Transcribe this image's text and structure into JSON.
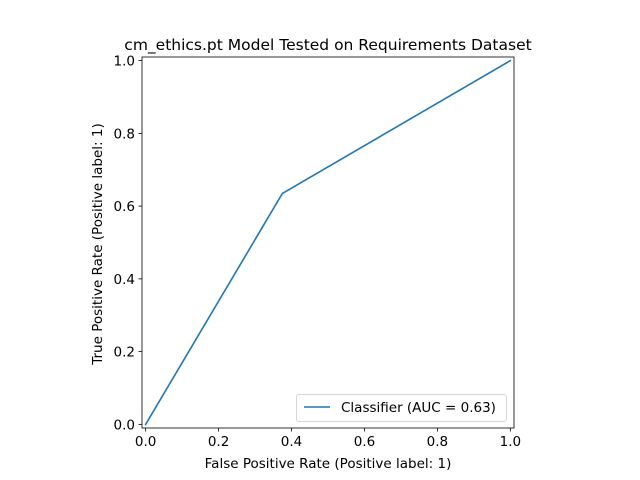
{
  "chart_data": {
    "type": "line",
    "title": "cm_ethics.pt Model Tested on Requirements Dataset",
    "xlabel": "False Positive Rate (Positive label: 1)",
    "ylabel": "True Positive Rate (Positive label: 1)",
    "xlim": [
      -0.01,
      1.01
    ],
    "ylim": [
      -0.01,
      1.01
    ],
    "xticks": [
      0.0,
      0.2,
      0.4,
      0.6,
      0.8,
      1.0
    ],
    "yticks": [
      0.0,
      0.2,
      0.4,
      0.6,
      0.8,
      1.0
    ],
    "xtick_labels": [
      "0.0",
      "0.2",
      "0.4",
      "0.6",
      "0.8",
      "1.0"
    ],
    "ytick_labels": [
      "0.0",
      "0.2",
      "0.4",
      "0.6",
      "0.8",
      "1.0"
    ],
    "grid": false,
    "legend_position": "lower-right",
    "series": [
      {
        "name": "Classifier (AUC = 0.63)",
        "color": "#1f77b4",
        "x": [
          0.0,
          0.375,
          1.0
        ],
        "y": [
          0.0,
          0.635,
          1.0
        ]
      }
    ]
  }
}
